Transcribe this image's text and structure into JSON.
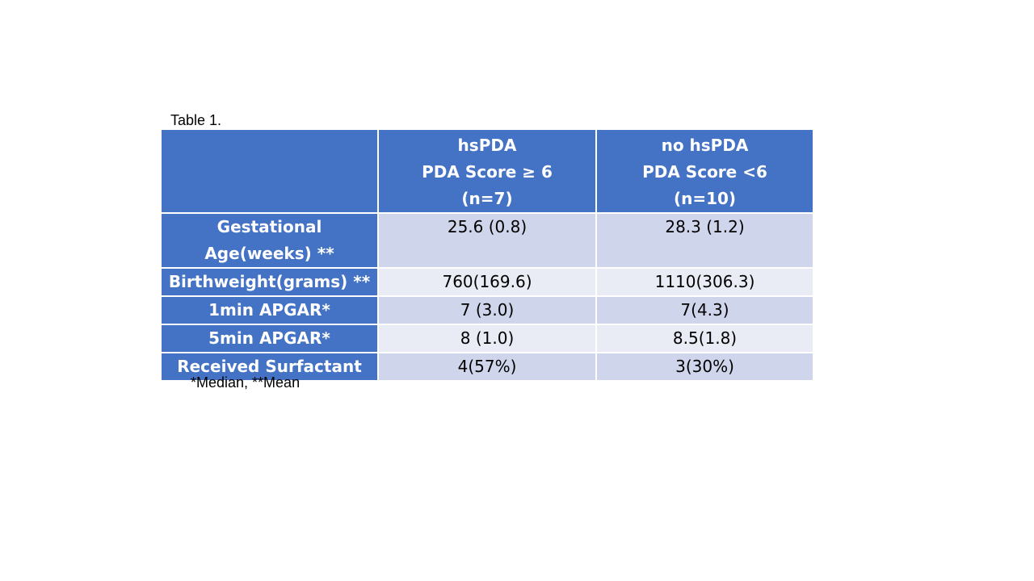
{
  "slide": {
    "caption": "Table 1.",
    "footnote": "*Median, **Mean"
  },
  "table": {
    "header": {
      "corner": "",
      "col1": [
        "hsPDA",
        "PDA Score ≥ 6",
        "(n=7)"
      ],
      "col2": [
        "no hsPDA",
        "PDA Score <6",
        "(n=10)"
      ]
    },
    "rows": [
      {
        "label": "Gestational Age(weeks) **",
        "hspda": "25.6 (0.8)",
        "no_hspda": "28.3 (1.2)"
      },
      {
        "label": "Birthweight(grams) **",
        "hspda": "760(169.6)",
        "no_hspda": "1110(306.3)"
      },
      {
        "label": "1min APGAR*",
        "hspda": "7 (3.0)",
        "no_hspda": "7(4.3)"
      },
      {
        "label": "5min APGAR*",
        "hspda": "8 (1.0)",
        "no_hspda": "8.5(1.8)"
      },
      {
        "label": "Received Surfactant",
        "hspda": "4(57%)",
        "no_hspda": "3(30%)"
      }
    ]
  },
  "colors": {
    "header_blue": "#4472c4",
    "row_dark": "#cfd5ea",
    "row_light": "#e9ebf5"
  }
}
